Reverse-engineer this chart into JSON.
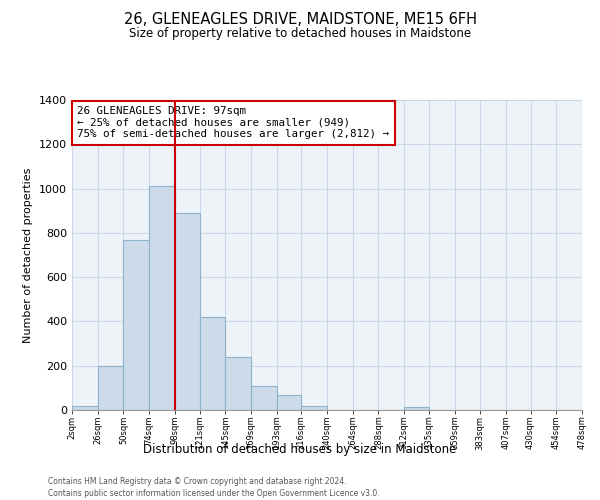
{
  "title": "26, GLENEAGLES DRIVE, MAIDSTONE, ME15 6FH",
  "subtitle": "Size of property relative to detached houses in Maidstone",
  "xlabel": "Distribution of detached houses by size in Maidstone",
  "ylabel": "Number of detached properties",
  "footnote1": "Contains HM Land Registry data © Crown copyright and database right 2024.",
  "footnote2": "Contains public sector information licensed under the Open Government Licence v3.0.",
  "bar_edges": [
    2,
    26,
    50,
    74,
    98,
    121,
    145,
    169,
    193,
    216,
    240,
    264,
    288,
    312,
    335,
    359,
    383,
    407,
    430,
    454,
    478
  ],
  "bar_heights": [
    20,
    200,
    770,
    1010,
    890,
    420,
    240,
    110,
    70,
    20,
    0,
    0,
    0,
    15,
    0,
    0,
    0,
    0,
    0,
    0
  ],
  "bar_color": "#ccdaea",
  "bar_edgecolor": "#8eb4cc",
  "vline_x": 98,
  "vline_color": "#cc0000",
  "ylim": [
    0,
    1400
  ],
  "yticks": [
    0,
    200,
    400,
    600,
    800,
    1000,
    1200,
    1400
  ],
  "annotation_line1": "26 GLENEAGLES DRIVE: 97sqm",
  "annotation_line2": "← 25% of detached houses are smaller (949)",
  "annotation_line3": "75% of semi-detached houses are larger (2,812) →",
  "annotation_box_edgecolor": "#cc0000",
  "tick_labels": [
    "2sqm",
    "26sqm",
    "50sqm",
    "74sqm",
    "98sqm",
    "121sqm",
    "145sqm",
    "169sqm",
    "193sqm",
    "216sqm",
    "240sqm",
    "264sqm",
    "288sqm",
    "312sqm",
    "335sqm",
    "359sqm",
    "383sqm",
    "407sqm",
    "430sqm",
    "454sqm",
    "478sqm"
  ],
  "background_color": "#ffffff",
  "plot_bg_color": "#eef3f8",
  "grid_color": "#c8d8e8"
}
